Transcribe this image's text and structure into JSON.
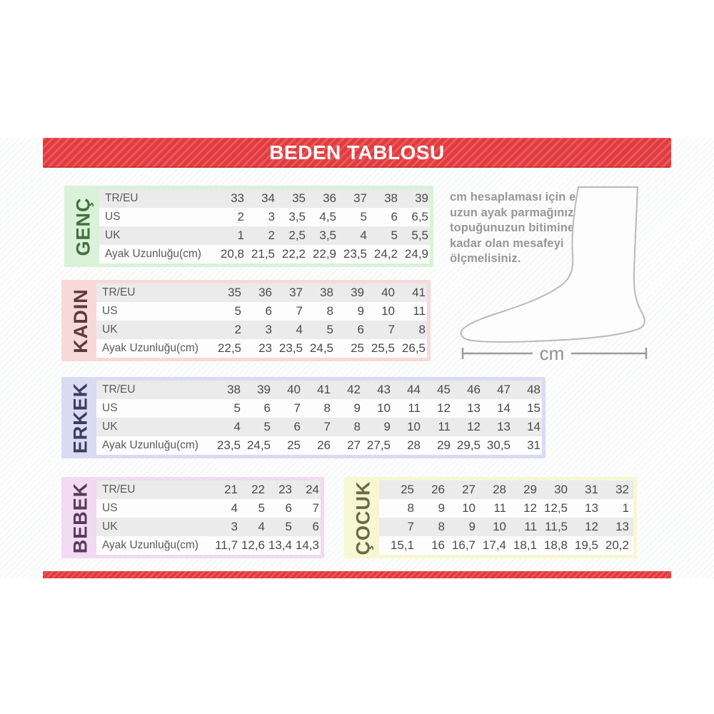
{
  "header": {
    "title": "BEDEN TABLOSU"
  },
  "colors": {
    "accent_red": "#e23a3e",
    "row_stripe": "#ebebeb"
  },
  "measure_note": {
    "text": "cm hesaplaması için en\nuzun ayak parmağınızdan\ntopuğunuzun bitimine\nkadar olan mesafeyi\nölçmelisiniz.",
    "unit_label": "cm"
  },
  "tables": [
    {
      "name": "genc",
      "label": "GENÇ",
      "band_bg": "#d9f2d9",
      "label_color": "#44713f",
      "show_row_labels": true,
      "rows": [
        {
          "label": "TR/EU",
          "values": [
            "33",
            "34",
            "35",
            "36",
            "37",
            "38",
            "39"
          ]
        },
        {
          "label": "US",
          "values": [
            "2",
            "3",
            "3,5",
            "4,5",
            "5",
            "6",
            "6,5"
          ]
        },
        {
          "label": "UK",
          "values": [
            "1",
            "2",
            "2,5",
            "3,5",
            "4",
            "5",
            "5,5"
          ]
        },
        {
          "label": "Ayak Uzunluğu(cm)",
          "values": [
            "20,8",
            "21,5",
            "22,2",
            "22,9",
            "23,5",
            "24,2",
            "24,9"
          ]
        }
      ]
    },
    {
      "name": "kadin",
      "label": "KADIN",
      "band_bg": "#f7d9d9",
      "label_color": "#5e3a3a",
      "show_row_labels": true,
      "rows": [
        {
          "label": "TR/EU",
          "values": [
            "35",
            "36",
            "37",
            "38",
            "39",
            "40",
            "41"
          ]
        },
        {
          "label": "US",
          "values": [
            "5",
            "6",
            "7",
            "8",
            "9",
            "10",
            "11"
          ]
        },
        {
          "label": "UK",
          "values": [
            "2",
            "3",
            "4",
            "5",
            "6",
            "7",
            "8"
          ]
        },
        {
          "label": "Ayak Uzunluğu(cm)",
          "values": [
            "22,5",
            "23",
            "23,5",
            "24,5",
            "25",
            "25,5",
            "26,5"
          ]
        }
      ]
    },
    {
      "name": "erkek",
      "label": "ERKEK",
      "band_bg": "#dadaf2",
      "label_color": "#3c3c61",
      "show_row_labels": true,
      "rows": [
        {
          "label": "TR/EU",
          "values": [
            "38",
            "39",
            "40",
            "41",
            "42",
            "43",
            "44",
            "45",
            "46",
            "47",
            "48"
          ]
        },
        {
          "label": "US",
          "values": [
            "5",
            "6",
            "7",
            "8",
            "9",
            "10",
            "11",
            "12",
            "13",
            "14",
            "15"
          ]
        },
        {
          "label": "UK",
          "values": [
            "4",
            "5",
            "6",
            "7",
            "8",
            "9",
            "10",
            "11",
            "12",
            "13",
            "14"
          ]
        },
        {
          "label": "Ayak Uzunluğu(cm)",
          "values": [
            "23,5",
            "24,5",
            "25",
            "26",
            "27",
            "27,5",
            "28",
            "29",
            "29,5",
            "30,5",
            "31"
          ]
        }
      ]
    },
    {
      "name": "bebek",
      "label": "BEBEK",
      "band_bg": "#f2daf2",
      "label_color": "#5a3a5a",
      "show_row_labels": true,
      "rows": [
        {
          "label": "TR/EU",
          "values": [
            "21",
            "22",
            "23",
            "24"
          ]
        },
        {
          "label": "US",
          "values": [
            "4",
            "5",
            "6",
            "7"
          ]
        },
        {
          "label": "UK",
          "values": [
            "3",
            "4",
            "5",
            "6"
          ]
        },
        {
          "label": "Ayak Uzunluğu(cm)",
          "values": [
            "11,7",
            "12,6",
            "13,4",
            "14,3"
          ]
        }
      ]
    },
    {
      "name": "cocuk",
      "label": "ÇOCUK",
      "band_bg": "#f7f7d2",
      "label_color": "#6b6b47",
      "show_row_labels": false,
      "rows": [
        {
          "label": "",
          "values": [
            "25",
            "26",
            "27",
            "28",
            "29",
            "30",
            "31",
            "32"
          ]
        },
        {
          "label": "",
          "values": [
            "8",
            "9",
            "10",
            "11",
            "12",
            "12,5",
            "13",
            "1"
          ]
        },
        {
          "label": "",
          "values": [
            "7",
            "8",
            "9",
            "10",
            "11",
            "11,5",
            "12",
            "13"
          ]
        },
        {
          "label": "",
          "values": [
            "15,1",
            "16",
            "16,7",
            "17,4",
            "18,1",
            "18,8",
            "19,5",
            "20,2"
          ]
        }
      ]
    }
  ]
}
